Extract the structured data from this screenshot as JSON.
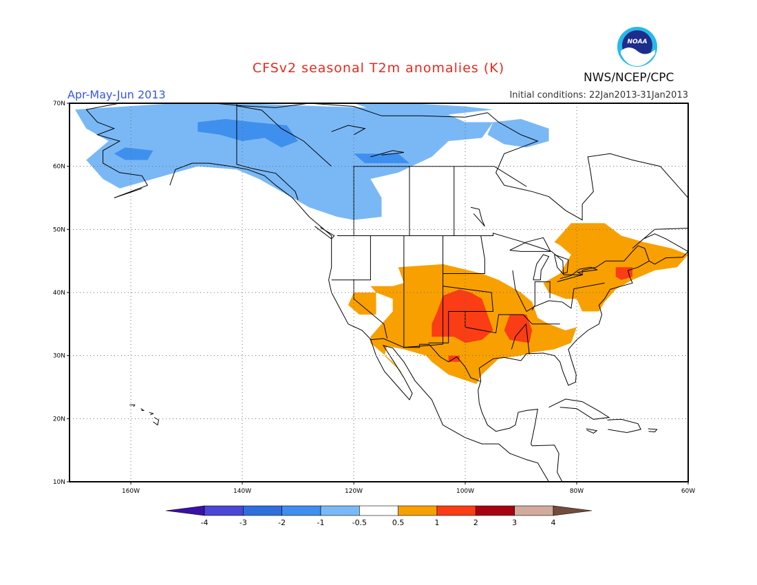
{
  "header": {
    "title": "CFSv2 seasonal T2m anomalies (K)",
    "period": "Apr-May-Jun 2013",
    "initial_conditions": "Initial conditions: 22Jan2013-31Jan2013",
    "org": "NWS/NCEP/CPC",
    "logo_text": "NOAA"
  },
  "axes": {
    "lat_labels": [
      "70N",
      "60N",
      "50N",
      "40N",
      "30N",
      "20N",
      "10N"
    ],
    "lon_labels": [
      "160W",
      "140W",
      "120W",
      "100W",
      "80W",
      "60W"
    ],
    "lat_range": [
      10,
      70
    ],
    "lon_range": [
      -171,
      -60
    ],
    "grid": true
  },
  "colorbar": {
    "tick_labels": [
      "-4",
      "-3",
      "-2",
      "-1",
      "-0.5",
      "0.5",
      "1",
      "2",
      "3",
      "4"
    ],
    "colors": [
      "#3a10a8",
      "#4a46d6",
      "#2f6fdc",
      "#3f8fee",
      "#79b9f5",
      "#ffffff",
      "#f8a000",
      "#fa3d14",
      "#a8000e",
      "#d3aa9e",
      "#744b3c"
    ]
  },
  "map_colors": {
    "cold_light": "#7ab8f5",
    "cold_medium": "#3f90ee",
    "warm_light": "#f8a000",
    "warm_medium": "#fa3d14"
  }
}
